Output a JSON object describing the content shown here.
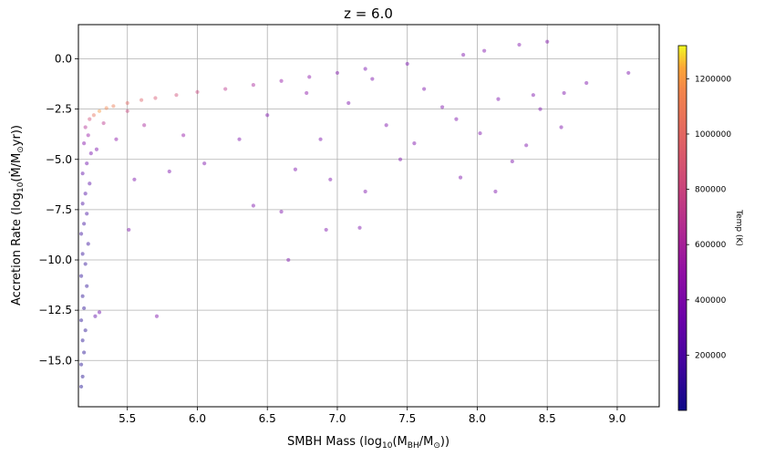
{
  "chart_data": {
    "type": "scatter",
    "title": "z = 6.0",
    "xlabel": {
      "main": "SMBH Mass (log",
      "sub": "10",
      "paren_open": "(M",
      "sub2": "BH",
      "slash": "/M",
      "sub3": "⊙",
      "close": "))"
    },
    "ylabel": {
      "main": "Accretion Rate (log",
      "sub": "10",
      "paren_open": "(",
      "mdot": "Ṁ",
      "slash": "/M",
      "sub2": "⊙",
      "close": "yr))"
    },
    "xlim": [
      5.15,
      9.3
    ],
    "ylim": [
      -17.3,
      1.7
    ],
    "xticks": [
      5.5,
      6.0,
      6.5,
      7.0,
      7.5,
      8.0,
      8.5,
      9.0
    ],
    "xtick_labels": [
      "5.5",
      "6.0",
      "6.5",
      "7.0",
      "7.5",
      "8.0",
      "8.5",
      "9.0"
    ],
    "yticks": [
      0.0,
      -2.5,
      -5.0,
      -7.5,
      -10.0,
      -12.5,
      -15.0
    ],
    "ytick_labels": [
      "0.0",
      "−2.5",
      "−5.0",
      "−7.5",
      "−10.0",
      "−12.5",
      "−15.0"
    ],
    "grid": true,
    "colorbar": {
      "label": "Temp (K)",
      "cmap": "plasma",
      "range": [
        0,
        1320000
      ],
      "ticks": [
        200000,
        400000,
        600000,
        800000,
        1000000,
        1200000
      ],
      "tick_labels": [
        "200000",
        "400000",
        "600000",
        "800000",
        "1000000",
        "1200000"
      ]
    },
    "marker_alpha": 0.45,
    "points": [
      {
        "x": 5.17,
        "y": -16.3,
        "t": 30000
      },
      {
        "x": 5.18,
        "y": -15.8,
        "t": 40000
      },
      {
        "x": 5.17,
        "y": -15.2,
        "t": 40000
      },
      {
        "x": 5.19,
        "y": -14.6,
        "t": 50000
      },
      {
        "x": 5.18,
        "y": -14.0,
        "t": 50000
      },
      {
        "x": 5.2,
        "y": -13.5,
        "t": 60000
      },
      {
        "x": 5.17,
        "y": -13.0,
        "t": 60000
      },
      {
        "x": 5.19,
        "y": -12.4,
        "t": 70000
      },
      {
        "x": 5.18,
        "y": -11.8,
        "t": 70000
      },
      {
        "x": 5.21,
        "y": -11.3,
        "t": 80000
      },
      {
        "x": 5.17,
        "y": -10.8,
        "t": 80000
      },
      {
        "x": 5.2,
        "y": -10.2,
        "t": 90000
      },
      {
        "x": 5.18,
        "y": -9.7,
        "t": 100000
      },
      {
        "x": 5.22,
        "y": -9.2,
        "t": 110000
      },
      {
        "x": 5.17,
        "y": -8.7,
        "t": 120000
      },
      {
        "x": 5.19,
        "y": -8.2,
        "t": 130000
      },
      {
        "x": 5.21,
        "y": -7.7,
        "t": 150000
      },
      {
        "x": 5.18,
        "y": -7.2,
        "t": 170000
      },
      {
        "x": 5.2,
        "y": -6.7,
        "t": 200000
      },
      {
        "x": 5.23,
        "y": -6.2,
        "t": 230000
      },
      {
        "x": 5.18,
        "y": -5.7,
        "t": 260000
      },
      {
        "x": 5.21,
        "y": -5.2,
        "t": 300000
      },
      {
        "x": 5.24,
        "y": -4.7,
        "t": 350000
      },
      {
        "x": 5.19,
        "y": -4.2,
        "t": 420000
      },
      {
        "x": 5.22,
        "y": -3.8,
        "t": 520000
      },
      {
        "x": 5.2,
        "y": -3.4,
        "t": 650000
      },
      {
        "x": 5.23,
        "y": -3.0,
        "t": 850000
      },
      {
        "x": 5.26,
        "y": -2.8,
        "t": 1050000
      },
      {
        "x": 5.3,
        "y": -2.6,
        "t": 1200000
      },
      {
        "x": 5.35,
        "y": -2.45,
        "t": 1150000
      },
      {
        "x": 5.4,
        "y": -2.35,
        "t": 1100000
      },
      {
        "x": 5.5,
        "y": -2.2,
        "t": 1000000
      },
      {
        "x": 5.6,
        "y": -2.05,
        "t": 950000
      },
      {
        "x": 5.7,
        "y": -1.95,
        "t": 900000
      },
      {
        "x": 5.85,
        "y": -1.8,
        "t": 850000
      },
      {
        "x": 6.0,
        "y": -1.65,
        "t": 800000
      },
      {
        "x": 6.2,
        "y": -1.5,
        "t": 700000
      },
      {
        "x": 6.4,
        "y": -1.3,
        "t": 600000
      },
      {
        "x": 6.6,
        "y": -1.1,
        "t": 500000
      },
      {
        "x": 6.8,
        "y": -0.9,
        "t": 450000
      },
      {
        "x": 7.0,
        "y": -0.7,
        "t": 400000
      },
      {
        "x": 7.2,
        "y": -0.5,
        "t": 350000
      },
      {
        "x": 7.5,
        "y": -0.25,
        "t": 350000
      },
      {
        "x": 7.9,
        "y": 0.2,
        "t": 380000
      },
      {
        "x": 8.05,
        "y": 0.4,
        "t": 400000
      },
      {
        "x": 8.3,
        "y": 0.7,
        "t": 400000
      },
      {
        "x": 8.5,
        "y": 0.85,
        "t": 400000
      },
      {
        "x": 9.08,
        "y": -0.7,
        "t": 380000
      },
      {
        "x": 8.78,
        "y": -1.2,
        "t": 380000
      },
      {
        "x": 8.62,
        "y": -1.7,
        "t": 380000
      },
      {
        "x": 8.45,
        "y": -2.5,
        "t": 380000
      },
      {
        "x": 8.6,
        "y": -3.4,
        "t": 380000
      },
      {
        "x": 8.35,
        "y": -4.3,
        "t": 380000
      },
      {
        "x": 8.25,
        "y": -5.1,
        "t": 380000
      },
      {
        "x": 8.13,
        "y": -6.6,
        "t": 380000
      },
      {
        "x": 7.88,
        "y": -5.9,
        "t": 380000
      },
      {
        "x": 7.45,
        "y": -5.0,
        "t": 380000
      },
      {
        "x": 7.2,
        "y": -6.6,
        "t": 380000
      },
      {
        "x": 7.16,
        "y": -8.4,
        "t": 380000
      },
      {
        "x": 6.92,
        "y": -8.5,
        "t": 380000
      },
      {
        "x": 6.6,
        "y": -7.6,
        "t": 380000
      },
      {
        "x": 6.65,
        "y": -10.0,
        "t": 380000
      },
      {
        "x": 5.71,
        "y": -12.8,
        "t": 380000
      },
      {
        "x": 5.51,
        "y": -8.5,
        "t": 380000
      },
      {
        "x": 5.3,
        "y": -12.6,
        "t": 300000
      },
      {
        "x": 5.27,
        "y": -12.8,
        "t": 250000
      },
      {
        "x": 6.3,
        "y": -4.0,
        "t": 380000
      },
      {
        "x": 6.4,
        "y": -7.3,
        "t": 380000
      },
      {
        "x": 6.05,
        "y": -5.2,
        "t": 380000
      },
      {
        "x": 5.8,
        "y": -5.6,
        "t": 380000
      },
      {
        "x": 5.55,
        "y": -6.0,
        "t": 380000
      },
      {
        "x": 7.85,
        "y": -3.0,
        "t": 380000
      },
      {
        "x": 8.15,
        "y": -2.0,
        "t": 380000
      },
      {
        "x": 7.62,
        "y": -1.5,
        "t": 380000
      },
      {
        "x": 7.35,
        "y": -3.3,
        "t": 380000
      },
      {
        "x": 7.08,
        "y": -2.2,
        "t": 380000
      },
      {
        "x": 6.88,
        "y": -4.0,
        "t": 380000
      },
      {
        "x": 6.7,
        "y": -5.5,
        "t": 380000
      },
      {
        "x": 6.5,
        "y": -2.8,
        "t": 380000
      },
      {
        "x": 6.95,
        "y": -6.0,
        "t": 380000
      },
      {
        "x": 7.55,
        "y": -4.2,
        "t": 380000
      },
      {
        "x": 7.75,
        "y": -2.4,
        "t": 380000
      },
      {
        "x": 8.02,
        "y": -3.7,
        "t": 380000
      },
      {
        "x": 8.4,
        "y": -1.8,
        "t": 380000
      },
      {
        "x": 7.25,
        "y": -1.0,
        "t": 380000
      },
      {
        "x": 6.78,
        "y": -1.7,
        "t": 450000
      },
      {
        "x": 5.9,
        "y": -3.8,
        "t": 500000
      },
      {
        "x": 5.62,
        "y": -3.3,
        "t": 600000
      },
      {
        "x": 5.42,
        "y": -4.0,
        "t": 450000
      },
      {
        "x": 5.33,
        "y": -3.2,
        "t": 700000
      },
      {
        "x": 5.28,
        "y": -4.5,
        "t": 380000
      },
      {
        "x": 5.5,
        "y": -2.6,
        "t": 800000
      }
    ]
  }
}
